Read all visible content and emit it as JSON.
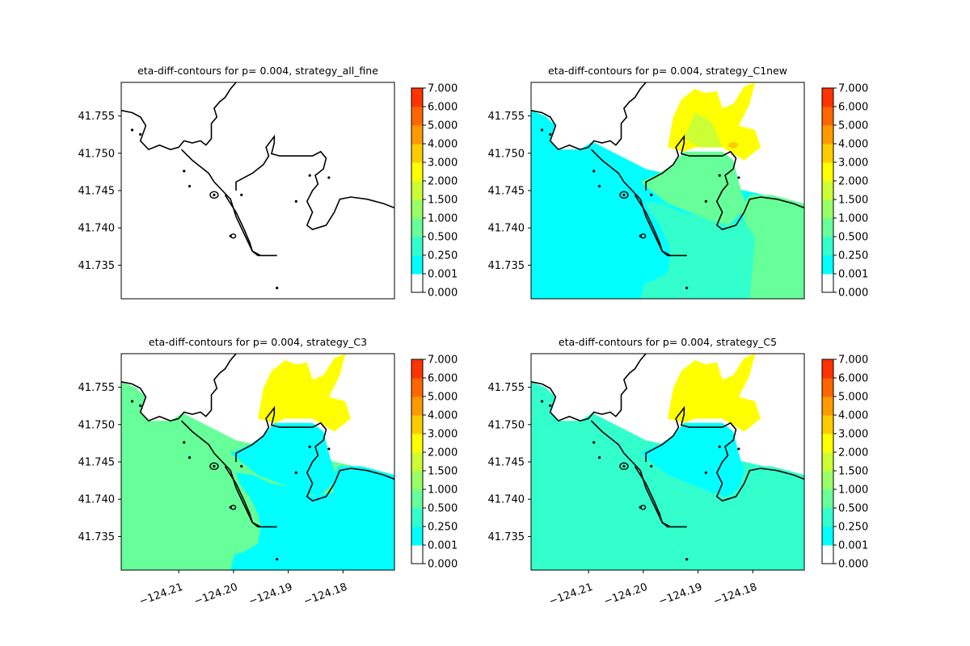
{
  "figure": {
    "background": "#ffffff",
    "coastline_color": "#000000"
  },
  "colorbar": {
    "levels": [
      0.0,
      0.001,
      0.25,
      0.5,
      1.0,
      1.5,
      2.0,
      3.0,
      4.0,
      5.0,
      6.0,
      7.0
    ],
    "tick_labels": [
      "0.000",
      "0.001",
      "0.250",
      "0.500",
      "1.000",
      "1.500",
      "2.000",
      "3.000",
      "4.000",
      "5.000",
      "6.000",
      "7.000"
    ],
    "colors": [
      "#ffffff",
      "#00ffff",
      "#33ffcc",
      "#66ff99",
      "#99ff66",
      "#ccff33",
      "#ffff00",
      "#ffcc00",
      "#ff9900",
      "#ff6600",
      "#ff3300",
      "#ff0000"
    ]
  },
  "chart_data": [
    {
      "type": "heatmap",
      "title": "eta-diff-contours for p= 0.004, strategy_all_fine",
      "xlim": [
        -124.2205,
        -124.1706
      ],
      "ylim": [
        41.7305,
        41.7595
      ],
      "yticks": [
        41.735,
        41.74,
        41.745,
        41.75,
        41.755
      ],
      "ytick_labels": [
        "41.735",
        "41.740",
        "41.745",
        "41.750",
        "41.755"
      ],
      "xticks": [],
      "xtick_labels": [],
      "fill": {
        "west_level": null,
        "harbor_level": null,
        "south_level": null,
        "east_level": null,
        "offshore_yellow": false,
        "onshore_green": false,
        "orange_spot": false
      },
      "dominant_level_min": 0.0
    },
    {
      "type": "heatmap",
      "title": "eta-diff-contours for p= 0.004, strategy_C1new",
      "xlim": [
        -124.2205,
        -124.1706
      ],
      "ylim": [
        41.7305,
        41.7595
      ],
      "yticks": [
        41.735,
        41.74,
        41.745,
        41.75,
        41.755
      ],
      "ytick_labels": [
        "41.735",
        "41.740",
        "41.745",
        "41.750",
        "41.755"
      ],
      "xticks": [],
      "xtick_labels": [],
      "fill": {
        "west_level": 0.001,
        "harbor_level": 0.5,
        "south_level": 0.25,
        "east_level": 0.5,
        "offshore_yellow": true,
        "onshore_green": true,
        "orange_spot": true
      },
      "dominant_level_min": 0.001
    },
    {
      "type": "heatmap",
      "title": "eta-diff-contours for p= 0.004, strategy_C3",
      "xlim": [
        -124.2205,
        -124.1706
      ],
      "ylim": [
        41.7305,
        41.7595
      ],
      "yticks": [
        41.735,
        41.74,
        41.745,
        41.75,
        41.755
      ],
      "ytick_labels": [
        "41.735",
        "41.740",
        "41.745",
        "41.750",
        "41.755"
      ],
      "xticks": [
        -124.21,
        -124.2,
        -124.19,
        -124.18
      ],
      "xtick_labels": [
        "−124.21",
        "−124.20",
        "−124.19",
        "−124.18"
      ],
      "fill": {
        "west_level": 0.5,
        "harbor_level": 0.001,
        "south_level": 0.001,
        "east_level": 0.001,
        "offshore_yellow": true,
        "onshore_green": false,
        "orange_spot": false
      },
      "dominant_level_min": 0.001
    },
    {
      "type": "heatmap",
      "title": "eta-diff-contours for p= 0.004, strategy_C5",
      "xlim": [
        -124.2205,
        -124.1706
      ],
      "ylim": [
        41.7305,
        41.7595
      ],
      "yticks": [
        41.735,
        41.74,
        41.745,
        41.75,
        41.755
      ],
      "ytick_labels": [
        "41.735",
        "41.740",
        "41.745",
        "41.750",
        "41.755"
      ],
      "xticks": [
        -124.21,
        -124.2,
        -124.19,
        -124.18
      ],
      "xtick_labels": [
        "−124.21",
        "−124.20",
        "−124.19",
        "−124.18"
      ],
      "fill": {
        "west_level": 0.25,
        "harbor_level": 0.001,
        "south_level": 0.25,
        "east_level": 0.25,
        "offshore_yellow": true,
        "onshore_green": false,
        "orange_spot": false
      },
      "dominant_level_min": 0.001
    }
  ]
}
